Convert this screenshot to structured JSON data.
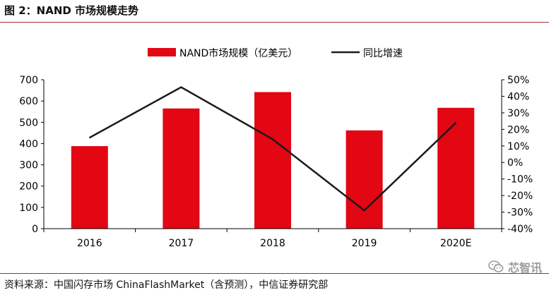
{
  "figure": {
    "title": "图 2：NAND 市场规模走势"
  },
  "source": {
    "text": "资料来源：中国闪存市场 ChinaFlashMarket（含预测），中信证券研究部"
  },
  "watermark": {
    "text": "芯智讯",
    "icon": "wechat-icon"
  },
  "colors": {
    "bar": "#e30613",
    "line": "#1a1a1a",
    "rule": "#b02a2a"
  },
  "chart_data": {
    "type": "bar",
    "title": "",
    "categories": [
      "2016",
      "2017",
      "2018",
      "2019",
      "2020E"
    ],
    "series": [
      {
        "name": "NAND市场规模（亿美元）",
        "type": "bar",
        "axis": "left",
        "values": [
          388,
          565,
          642,
          462,
          568
        ]
      },
      {
        "name": "同比增速",
        "type": "line",
        "axis": "right",
        "values": [
          15,
          45.5,
          14,
          -29,
          24
        ]
      }
    ],
    "y_left": {
      "range": [
        0,
        700
      ],
      "ticks": [
        "0",
        "100",
        "200",
        "300",
        "400",
        "500",
        "600",
        "700"
      ]
    },
    "y_right": {
      "range": [
        -40,
        50
      ],
      "ticks": [
        "-40%",
        "-30%",
        "-20%",
        "-10%",
        "0%",
        "10%",
        "20%",
        "30%",
        "40%",
        "50%"
      ]
    },
    "grid": false,
    "legend_position": "top"
  }
}
